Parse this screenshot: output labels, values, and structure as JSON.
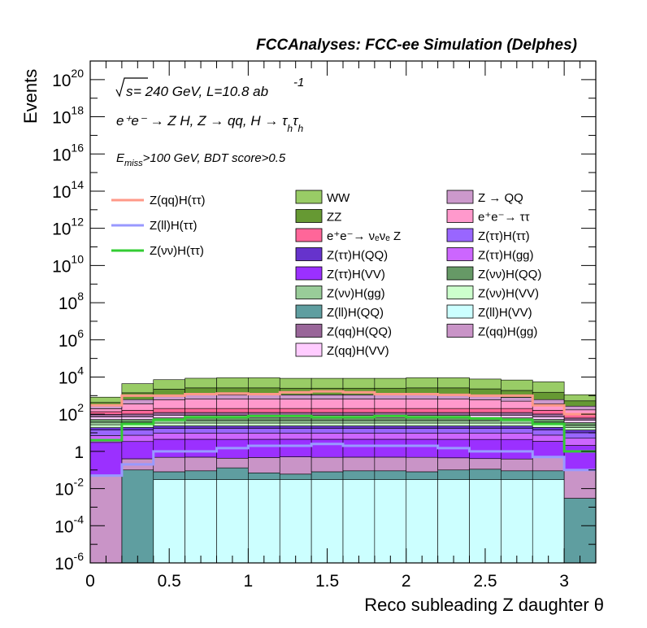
{
  "chart_data": {
    "type": "stacked histogram",
    "title": "FCCAnalyses: FCC-ee Simulation (Delphes)",
    "xlabel": "Reco subleading Z daughter θ",
    "ylabel": "Events",
    "xlim": [
      0,
      3.2
    ],
    "ylim": [
      1e-06,
      1e+21
    ],
    "yscale": "log",
    "x_ticks": [
      "0",
      "0.5",
      "1",
      "1.5",
      "2",
      "2.5",
      "3"
    ],
    "y_ticks": [
      {
        "base": "10",
        "exp": "20"
      },
      {
        "base": "10",
        "exp": "18"
      },
      {
        "base": "10",
        "exp": "16"
      },
      {
        "base": "10",
        "exp": "14"
      },
      {
        "base": "10",
        "exp": "12"
      },
      {
        "base": "10",
        "exp": "10"
      },
      {
        "base": "10",
        "exp": "8"
      },
      {
        "base": "10",
        "exp": "6"
      },
      {
        "base": "10",
        "exp": "4"
      },
      {
        "base": "10",
        "exp": "2"
      },
      {
        "base": "1",
        "exp": ""
      },
      {
        "base": "10",
        "exp": "-2"
      },
      {
        "base": "10",
        "exp": "-4"
      },
      {
        "base": "10",
        "exp": "-6"
      }
    ],
    "annotations": {
      "sqrt_s": "s",
      "energy": " = 240 GeV, L=10.8 ab",
      "energy_exp": "-1",
      "process": "e⁺e⁻ → Z H, Z  → qq, H  → τ",
      "process_sub": "h",
      "process_tail": "τ",
      "process_sub2": "h",
      "cuts_e": "E",
      "cuts_sub": "miss",
      "cuts_rest": ">100 GeV, BDT score>0.5"
    },
    "bin_edges": [
      0,
      0.2,
      0.4,
      0.6,
      0.8,
      1.0,
      1.2,
      1.4,
      1.6,
      1.8,
      2.0,
      2.2,
      2.4,
      2.6,
      2.8,
      3.0,
      3.2
    ],
    "stack_bottom_to_top": [
      {
        "name": "Z(ll)H(VV)",
        "color": "#ccffff",
        "values": [
          0,
          0,
          0.03,
          0.03,
          0.03,
          0.03,
          0.03,
          0.03,
          0.03,
          0.03,
          0.03,
          0.03,
          0.03,
          0.03,
          0.03,
          0
        ]
      },
      {
        "name": "Z(ll)H(QQ)",
        "color": "#5f9ea0",
        "values": [
          0,
          0.1,
          0.05,
          0.06,
          0.1,
          0.04,
          0.03,
          0.05,
          0.06,
          0.06,
          0.05,
          0.07,
          0.08,
          0.06,
          0.06,
          0.003
        ]
      },
      {
        "name": "Z(qq)H(gg)",
        "color": "#c994c7",
        "values": [
          0.05,
          0.3,
          0.4,
          0.4,
          0.3,
          0.4,
          0.45,
          0.4,
          0.4,
          0.4,
          0.4,
          0.35,
          0.3,
          0.3,
          0.4,
          0.1
        ]
      },
      {
        "name": "Z(ττ)H(VV)",
        "color": "#9b30ff",
        "values": [
          3,
          3,
          4,
          4,
          4,
          4,
          4,
          4,
          4,
          4,
          4,
          4,
          4,
          4,
          3,
          2
        ]
      },
      {
        "name": "Z(ττ)H(gg)",
        "color": "#cc66ff",
        "values": [
          4,
          4,
          5,
          5,
          5,
          5,
          5,
          5,
          5,
          5,
          5,
          5,
          5,
          5,
          4,
          3
        ]
      },
      {
        "name": "Z(ττ)H(ττ)",
        "color": "#9966ff",
        "values": [
          7,
          7,
          8,
          8,
          8,
          8,
          8,
          8,
          8,
          8,
          8,
          8,
          8,
          8,
          7,
          5
        ]
      },
      {
        "name": "Z(ττ)H(QQ)",
        "color": "#6633cc",
        "values": [
          5,
          5,
          6,
          6,
          6,
          6,
          6,
          6,
          6,
          6,
          6,
          6,
          6,
          6,
          5,
          4
        ]
      },
      {
        "name": "Z(νν)H(VV)",
        "color": "#ccffcc",
        "values": [
          8,
          8,
          10,
          10,
          10,
          10,
          10,
          10,
          10,
          10,
          10,
          10,
          10,
          10,
          8,
          5
        ]
      },
      {
        "name": "Z(νν)H(gg)",
        "color": "#99cc99",
        "values": [
          10,
          10,
          12,
          12,
          12,
          12,
          12,
          12,
          12,
          12,
          12,
          12,
          12,
          12,
          10,
          6
        ]
      },
      {
        "name": "Z(νν)H(QQ)",
        "color": "#669966",
        "values": [
          15,
          15,
          18,
          18,
          18,
          18,
          18,
          18,
          18,
          18,
          18,
          18,
          18,
          18,
          15,
          10
        ]
      },
      {
        "name": "Z(qq)H(VV)",
        "color": "#ffccff",
        "values": [
          20,
          20,
          25,
          25,
          25,
          25,
          25,
          25,
          25,
          25,
          25,
          25,
          25,
          25,
          20,
          12
        ]
      },
      {
        "name": "Z(qq)H(QQ)",
        "color": "#996699",
        "values": [
          25,
          30,
          35,
          35,
          35,
          35,
          35,
          35,
          35,
          35,
          35,
          35,
          35,
          35,
          30,
          15
        ]
      },
      {
        "name": "e⁺e⁻→ νₑνₑ Z",
        "color": "#ff6699",
        "values": [
          40,
          60,
          80,
          80,
          80,
          80,
          80,
          80,
          80,
          80,
          80,
          80,
          80,
          80,
          60,
          30
        ]
      },
      {
        "name": "e⁺e⁻→ ττ",
        "color": "#ff99cc",
        "values": [
          60,
          200,
          400,
          450,
          450,
          450,
          450,
          450,
          450,
          450,
          450,
          450,
          400,
          300,
          200,
          80
        ]
      },
      {
        "name": "Z → QQ",
        "color": "#cc99cc",
        "values": [
          80,
          250,
          400,
          450,
          450,
          450,
          450,
          450,
          450,
          450,
          450,
          450,
          400,
          300,
          250,
          100
        ]
      },
      {
        "name": "ZZ",
        "color": "#669933",
        "values": [
          150,
          800,
          1200,
          1500,
          1500,
          1500,
          1400,
          1400,
          1400,
          1400,
          1500,
          1500,
          1300,
          1100,
          900,
          250
        ]
      },
      {
        "name": "WW",
        "color": "#99cc66",
        "values": [
          400,
          3000,
          5000,
          6000,
          6500,
          6500,
          6000,
          6000,
          6000,
          6000,
          6500,
          6500,
          5500,
          5000,
          4000,
          600
        ]
      }
    ],
    "signals": [
      {
        "name": "Z(qq)H(ττ)",
        "color": "#ff9988",
        "values": [
          300,
          1000,
          1000,
          1200,
          1300,
          1200,
          1500,
          1700,
          1500,
          1200,
          1200,
          1100,
          1000,
          1000,
          300,
          100
        ]
      },
      {
        "name": "Z(ll)H(ττ)",
        "color": "#9999ff",
        "values": [
          0.05,
          0.2,
          1,
          1,
          1.5,
          2,
          2,
          2.5,
          2,
          2,
          2,
          1.5,
          1,
          1,
          0.5,
          0.1
        ]
      },
      {
        "name": "Z(νν)H(ττ)",
        "color": "#33cc33",
        "values": [
          4,
          30,
          50,
          70,
          70,
          80,
          80,
          70,
          70,
          80,
          70,
          70,
          60,
          50,
          30,
          1
        ]
      }
    ],
    "legend_signals": [
      "Z(qq)H(ττ)",
      "Z(ll)H(ττ)",
      "Z(νν)H(ττ)"
    ],
    "legend_col1": [
      "WW",
      "ZZ",
      "e⁺e⁻→ νₑνₑ Z",
      "Z(ττ)H(QQ)",
      "Z(ττ)H(VV)",
      "Z(νν)H(gg)",
      "Z(ll)H(QQ)",
      "Z(qq)H(QQ)",
      "Z(qq)H(VV)"
    ],
    "legend_col2": [
      "Z → QQ",
      "e⁺e⁻→ ττ",
      "Z(ττ)H(ττ)",
      "Z(ττ)H(gg)",
      "Z(νν)H(QQ)",
      "Z(νν)H(VV)",
      "Z(ll)H(VV)",
      "Z(qq)H(gg)"
    ],
    "grid": false,
    "legend_placement": "top-center"
  }
}
